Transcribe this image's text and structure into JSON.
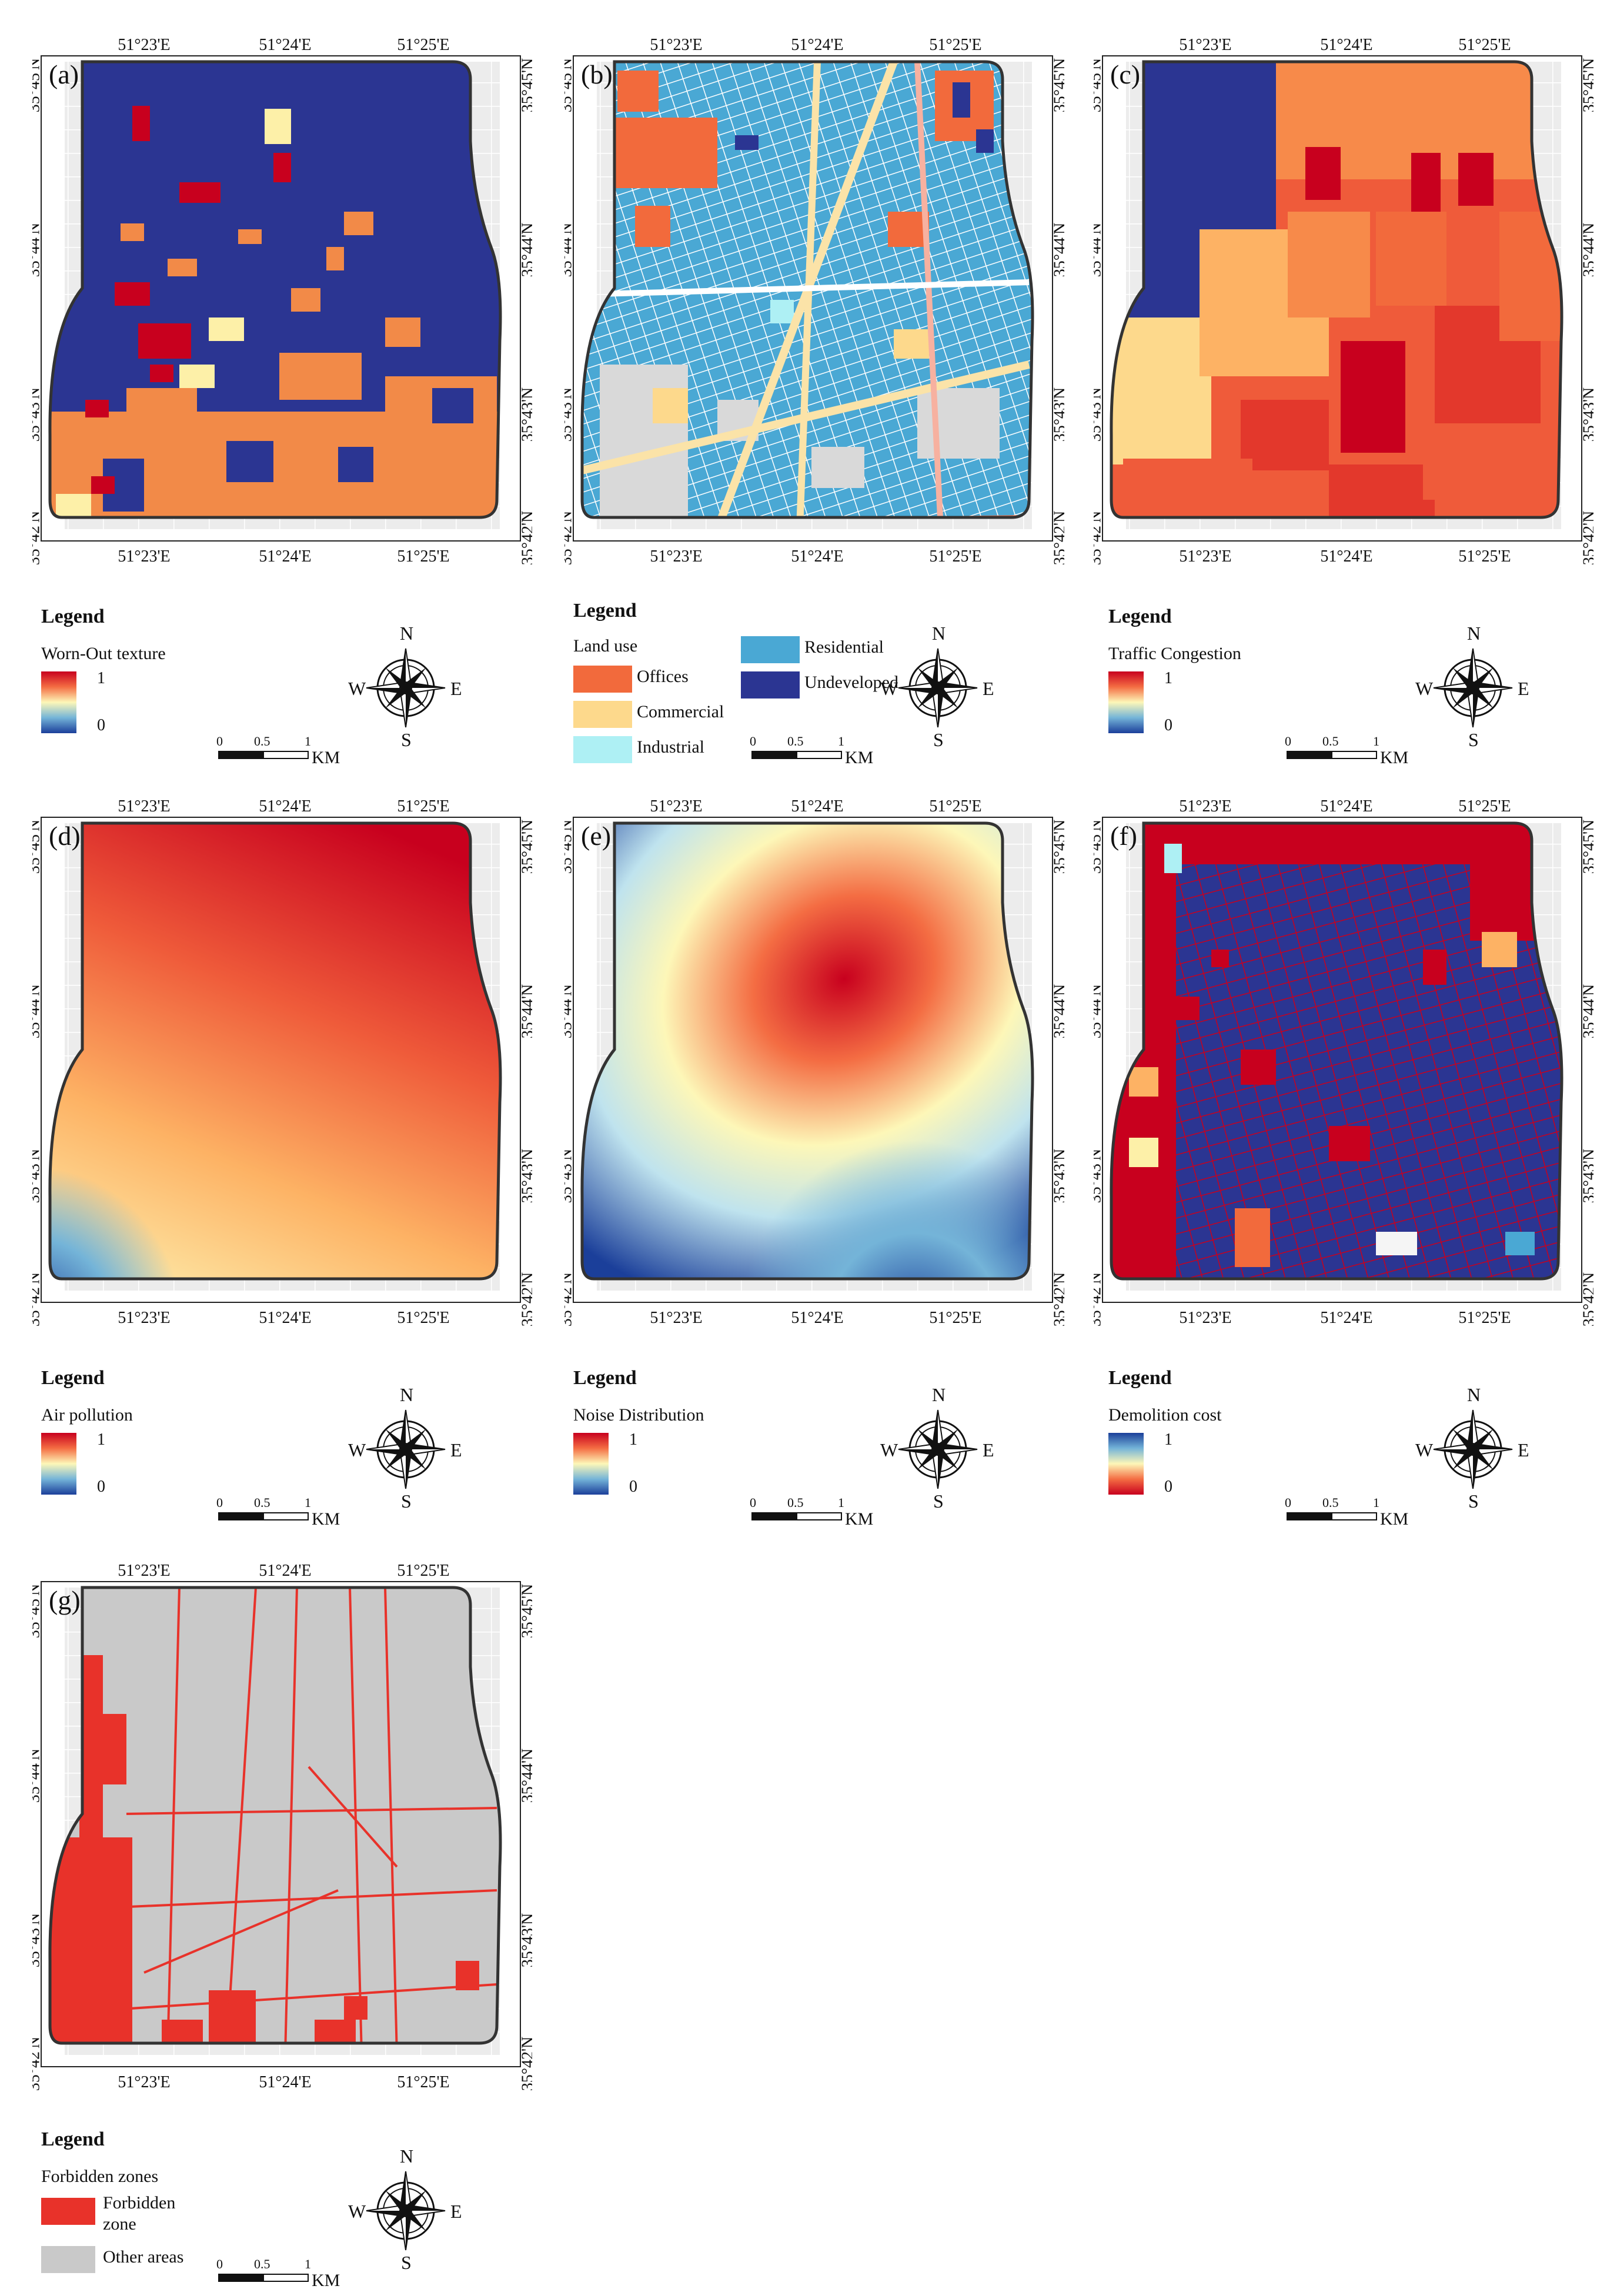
{
  "axis": {
    "lon": [
      "51°23'E",
      "51°24'E",
      "51°25'E"
    ],
    "lat": [
      "35°45'N",
      "35°44'N",
      "35°43'N",
      "35°42'N"
    ]
  },
  "common": {
    "legend_title": "Legend",
    "compass": {
      "n": "N",
      "s": "S",
      "e": "E",
      "w": "W"
    },
    "scale": {
      "t0": "0",
      "t1": "0.5",
      "t2": "1",
      "unit": "KM"
    }
  },
  "panels": {
    "a": {
      "label": "(a)",
      "legend_label": "Worn-Out texture",
      "max": "1",
      "min": "0"
    },
    "b": {
      "label": "(b)",
      "legend_label": "Land use",
      "classes": {
        "offices": "Offices",
        "commercial": "Commercial",
        "industrial": "Industrial",
        "residential": "Residential",
        "undeveloped": "Undeveloped"
      }
    },
    "c": {
      "label": "(c)",
      "legend_label": "Traffic Congestion",
      "max": "1",
      "min": "0"
    },
    "d": {
      "label": "(d)",
      "legend_label": "Air pollution",
      "max": "1",
      "min": "0"
    },
    "e": {
      "label": "(e)",
      "legend_label": "Noise Distribution",
      "max": "1",
      "min": "0"
    },
    "f": {
      "label": "(f)",
      "legend_label": "Demolition cost",
      "max": "1",
      "min": "0"
    },
    "g": {
      "label": "(g)",
      "legend_label": "Forbidden zones",
      "forbidden_line1": "Forbidden",
      "forbidden_line2": "zone",
      "other": "Other areas"
    }
  },
  "colors": {
    "ramp_high": "#c8001e",
    "ramp_mid": "#fdf7b8",
    "ramp_low": "#1b3f9a",
    "offices": "#f26a3c",
    "commercial": "#fdd98c",
    "industrial": "#aef0f4",
    "residential": "#4aa8d4",
    "undeveloped": "#2b3592",
    "forbidden": "#e8322a",
    "other_areas": "#c9c9c9"
  }
}
